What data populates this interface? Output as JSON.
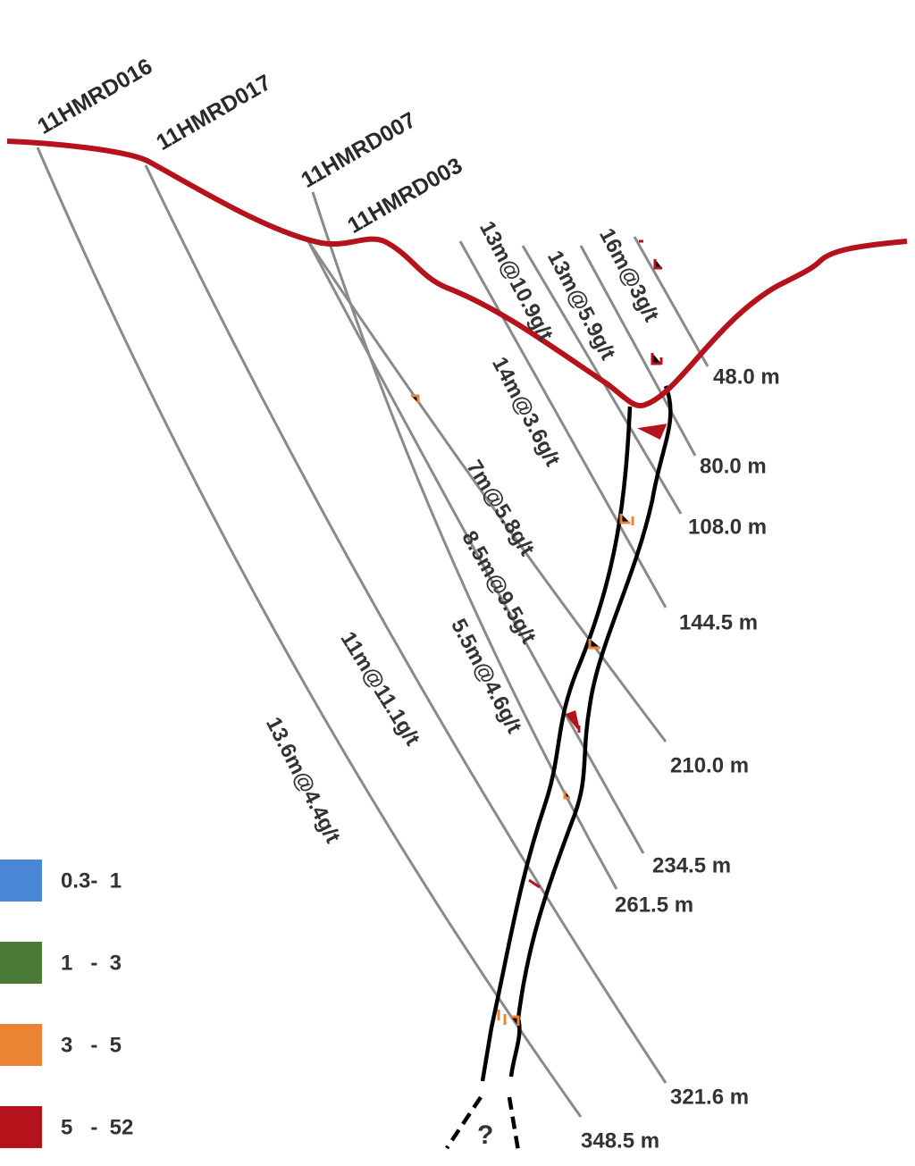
{
  "holes": [
    "11HMRD016",
    "11HMRD017",
    "11HMRD007",
    "11HMRD003"
  ],
  "intercepts": [
    "16m@3g/t",
    "13m@5.9g/t",
    "13m@10.9g/t",
    "14m@3.6g/t",
    "7m@5.8g/t",
    "8.5m@9.5g/t",
    "5.5m@4.6g/t",
    "11m@11.1g/t",
    "13.6m@4.4g/t"
  ],
  "depths": [
    "48.0 m",
    "80.0 m",
    "108.0 m",
    "144.5 m",
    "210.0 m",
    "234.5 m",
    "261.5 m",
    "321.6 m",
    "348.5 m"
  ],
  "legend": [
    {
      "label": "0.3-  1",
      "color": "#4a86d6"
    },
    {
      "label": "1   -  3",
      "color": "#4a7a35"
    },
    {
      "label": "3   -  5",
      "color": "#ec8233"
    },
    {
      "label": "5   -  52",
      "color": "#b5121b"
    }
  ],
  "unknown": "?"
}
